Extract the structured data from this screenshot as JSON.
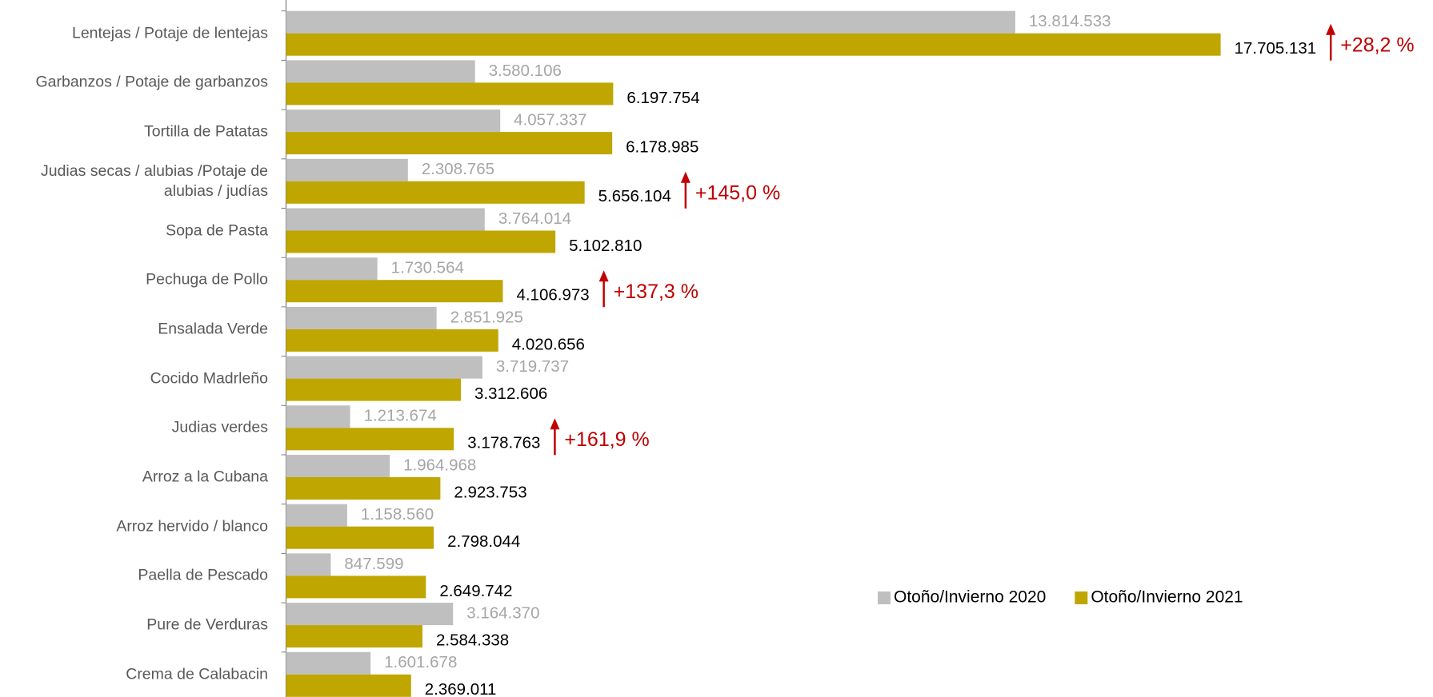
{
  "chart_data": {
    "type": "hbar",
    "categories": [
      "Lentejas / Potaje de lentejas",
      "Garbanzos / Potaje de garbanzos",
      "Tortilla de Patatas",
      "Judias secas / alubias /Potaje de\nalubias / judías",
      "Sopa de Pasta",
      "Pechuga de Pollo",
      "Ensalada Verde",
      "Cocido Madrleño",
      "Judias verdes",
      "Arroz a la Cubana",
      "Arroz hervido / blanco",
      "Paella de Pescado",
      "Pure de Verduras",
      "Crema de Calabacin"
    ],
    "series": [
      {
        "name": "Otoño/Invierno 2020",
        "color": "#bfbfbf",
        "label_color": "#a6a6a6",
        "values": [
          13814533,
          3580106,
          4057337,
          2308765,
          3764014,
          1730564,
          2851925,
          3719737,
          1213674,
          1964968,
          1158560,
          847599,
          3164370,
          1601678
        ],
        "value_labels": [
          "13.814.533",
          "3.580.106",
          "4.057.337",
          "2.308.765",
          "3.764.014",
          "1.730.564",
          "2.851.925",
          "3.719.737",
          "1.213.674",
          "1.964.968",
          "1.158.560",
          "847.599",
          "3.164.370",
          "1.601.678"
        ]
      },
      {
        "name": "Otoño/Invierno 2021",
        "color": "#bfa600",
        "label_color": "#000000",
        "values": [
          17705131,
          6197754,
          6178985,
          5656104,
          5102810,
          4106973,
          4020656,
          3312606,
          3178763,
          2923753,
          2798044,
          2649742,
          2584338,
          2369011
        ],
        "value_labels": [
          "17.705.131",
          "6.197.754",
          "6.178.985",
          "5.656.104",
          "5.102.810",
          "4.106.973",
          "4.020.656",
          "3.312.606",
          "3.178.763",
          "2.923.753",
          "2.798.044",
          "2.649.742",
          "2.584.338",
          "2.369.011"
        ]
      }
    ],
    "xlim": [
      0,
      20000000
    ],
    "annotations": [
      {
        "category": "Lentejas / Potaje de lentejas",
        "text": "+28,2 %"
      },
      {
        "category": "Judias secas / alubias /Potaje de\nalubias / judías",
        "text": "+145,0 %"
      },
      {
        "category": "Pechuga de Pollo",
        "text": "+137,3 %"
      },
      {
        "category": "Judias verdes",
        "text": "+161,9 %"
      }
    ],
    "annotation_color": "#c00000",
    "legend": "lower right"
  }
}
